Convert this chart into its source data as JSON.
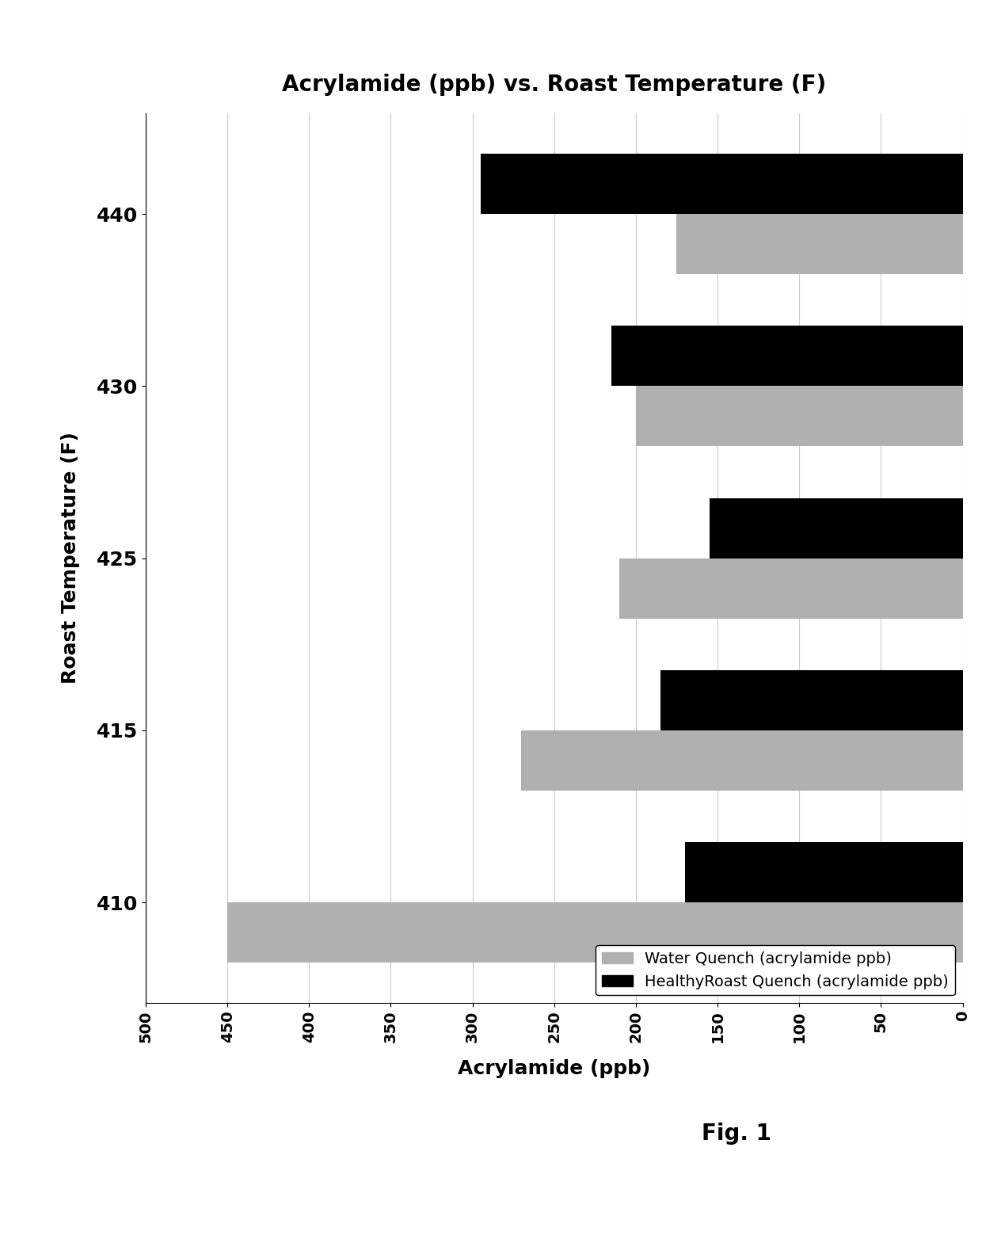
{
  "title": "Acrylamide (ppb) vs. Roast Temperature (F)",
  "xlabel": "Acrylamide (ppb)",
  "ylabel": "Roast Temperature (F)",
  "fig_label": "Fig. 1",
  "categories": [
    410,
    415,
    425,
    430,
    440
  ],
  "water_quench": [
    450,
    270,
    210,
    200,
    175
  ],
  "healthy_roast": [
    170,
    185,
    155,
    215,
    295
  ],
  "xlim": [
    0,
    500
  ],
  "xticks": [
    0,
    50,
    100,
    150,
    200,
    250,
    300,
    350,
    400,
    450,
    500
  ],
  "legend_water": "Water Quench (acrylamide ppb)",
  "legend_healthy": "HealthyRoast Quench (acrylamide ppb)",
  "water_color": "#b0b0b0",
  "healthy_color": "#000000",
  "bar_height": 0.35,
  "background_color": "#ffffff",
  "grid_color": "#cccccc"
}
